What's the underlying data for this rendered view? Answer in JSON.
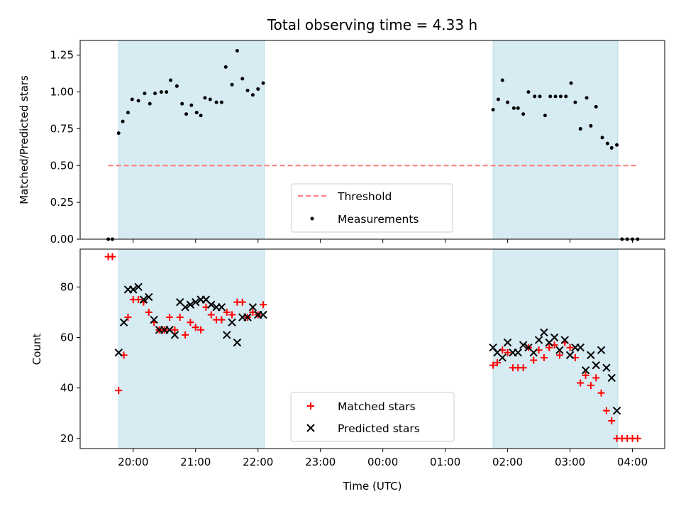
{
  "chart_data": {
    "type": "scatter",
    "title": "Total observing time = 4.33 h",
    "x_unit": "Time (UTC)",
    "x_range": [
      "19:09",
      "04:31"
    ],
    "x_ticks": [
      "20:00",
      "21:00",
      "22:00",
      "23:00",
      "00:00",
      "01:00",
      "02:00",
      "03:00",
      "04:00"
    ],
    "xlabel": "Time (UTC)",
    "shaded_intervals": [
      [
        "19:46",
        "22:06"
      ],
      [
        "01:46",
        "03:46"
      ]
    ],
    "panels": [
      {
        "name": "ratio",
        "ylabel": "Matched/Predicted stars",
        "ylim": [
          0,
          1.35
        ],
        "y_ticks": [
          "0.00",
          "0.25",
          "0.50",
          "0.75",
          "1.00",
          "1.25"
        ],
        "threshold": {
          "label": "Threshold",
          "value": 0.5,
          "x_start": "19:36",
          "x_end": "04:06",
          "color": "#ff7b7b"
        },
        "series": [
          {
            "name": "Measurements",
            "marker": "dot",
            "color": "#000000",
            "points": [
              [
                "19:36",
                0.0
              ],
              [
                "19:40",
                0.0
              ],
              [
                "19:46",
                0.72
              ],
              [
                "19:50",
                0.8
              ],
              [
                "19:55",
                0.86
              ],
              [
                "19:59",
                0.95
              ],
              [
                "20:05",
                0.94
              ],
              [
                "20:11",
                0.99
              ],
              [
                "20:16",
                0.92
              ],
              [
                "20:21",
                0.99
              ],
              [
                "20:27",
                1.0
              ],
              [
                "20:32",
                1.0
              ],
              [
                "20:36",
                1.08
              ],
              [
                "20:42",
                1.04
              ],
              [
                "20:47",
                0.92
              ],
              [
                "20:51",
                0.85
              ],
              [
                "20:56",
                0.91
              ],
              [
                "21:01",
                0.86
              ],
              [
                "21:05",
                0.84
              ],
              [
                "21:09",
                0.96
              ],
              [
                "21:14",
                0.95
              ],
              [
                "21:20",
                0.93
              ],
              [
                "21:25",
                0.93
              ],
              [
                "21:29",
                1.17
              ],
              [
                "21:35",
                1.05
              ],
              [
                "21:40",
                1.28
              ],
              [
                "21:45",
                1.09
              ],
              [
                "21:50",
                1.01
              ],
              [
                "21:55",
                0.98
              ],
              [
                "22:00",
                1.02
              ],
              [
                "22:05",
                1.06
              ],
              [
                "01:46",
                0.88
              ],
              [
                "01:51",
                0.95
              ],
              [
                "01:55",
                1.08
              ],
              [
                "02:00",
                0.93
              ],
              [
                "02:06",
                0.89
              ],
              [
                "02:10",
                0.89
              ],
              [
                "02:15",
                0.85
              ],
              [
                "02:20",
                1.0
              ],
              [
                "02:26",
                0.97
              ],
              [
                "02:31",
                0.97
              ],
              [
                "02:36",
                0.84
              ],
              [
                "02:41",
                0.97
              ],
              [
                "02:46",
                0.97
              ],
              [
                "02:51",
                0.97
              ],
              [
                "02:56",
                0.97
              ],
              [
                "03:01",
                1.06
              ],
              [
                "03:05",
                0.93
              ],
              [
                "03:10",
                0.75
              ],
              [
                "03:16",
                0.96
              ],
              [
                "03:20",
                0.77
              ],
              [
                "03:25",
                0.9
              ],
              [
                "03:31",
                0.69
              ],
              [
                "03:36",
                0.65
              ],
              [
                "03:40",
                0.62
              ],
              [
                "03:45",
                0.64
              ],
              [
                "03:50",
                0.0
              ],
              [
                "03:55",
                0.0
              ],
              [
                "04:00",
                0.0
              ],
              [
                "04:05",
                0.0
              ]
            ]
          }
        ],
        "legend": {
          "placement": "lower center",
          "entries": [
            "Threshold",
            "Measurements"
          ]
        }
      },
      {
        "name": "counts",
        "ylabel": "Count",
        "ylim": [
          16,
          95
        ],
        "y_ticks": [
          "20",
          "40",
          "60",
          "80"
        ],
        "series": [
          {
            "name": "Matched stars",
            "marker": "plus",
            "color": "#ff0000",
            "points": [
              [
                "19:36",
                92
              ],
              [
                "19:40",
                92
              ],
              [
                "19:46",
                39
              ],
              [
                "19:51",
                53
              ],
              [
                "19:55",
                68
              ],
              [
                "20:00",
                75
              ],
              [
                "20:05",
                75
              ],
              [
                "20:10",
                74
              ],
              [
                "20:15",
                70
              ],
              [
                "20:20",
                66
              ],
              [
                "20:25",
                63
              ],
              [
                "20:30",
                63
              ],
              [
                "20:35",
                68
              ],
              [
                "20:40",
                63
              ],
              [
                "20:45",
                68
              ],
              [
                "20:50",
                61
              ],
              [
                "20:55",
                66
              ],
              [
                "21:00",
                64
              ],
              [
                "21:05",
                63
              ],
              [
                "21:10",
                72
              ],
              [
                "21:15",
                69
              ],
              [
                "21:20",
                67
              ],
              [
                "21:25",
                67
              ],
              [
                "21:30",
                70
              ],
              [
                "21:35",
                69
              ],
              [
                "21:40",
                74
              ],
              [
                "21:45",
                74
              ],
              [
                "21:50",
                68
              ],
              [
                "21:55",
                70
              ],
              [
                "22:00",
                69
              ],
              [
                "22:05",
                73
              ],
              [
                "01:46",
                49
              ],
              [
                "01:50",
                50
              ],
              [
                "01:55",
                55
              ],
              [
                "02:00",
                54
              ],
              [
                "02:05",
                48
              ],
              [
                "02:10",
                48
              ],
              [
                "02:15",
                48
              ],
              [
                "02:20",
                56
              ],
              [
                "02:25",
                51
              ],
              [
                "02:30",
                55
              ],
              [
                "02:35",
                52
              ],
              [
                "02:40",
                56
              ],
              [
                "02:45",
                57
              ],
              [
                "02:50",
                53
              ],
              [
                "02:55",
                58
              ],
              [
                "03:00",
                56
              ],
              [
                "03:05",
                52
              ],
              [
                "03:10",
                42
              ],
              [
                "03:15",
                45
              ],
              [
                "03:20",
                41
              ],
              [
                "03:25",
                44
              ],
              [
                "03:30",
                38
              ],
              [
                "03:35",
                31
              ],
              [
                "03:40",
                27
              ],
              [
                "03:45",
                20
              ],
              [
                "03:50",
                20
              ],
              [
                "03:55",
                20
              ],
              [
                "04:00",
                20
              ],
              [
                "04:05",
                20
              ]
            ]
          },
          {
            "name": "Predicted stars",
            "marker": "cross",
            "color": "#000000",
            "points": [
              [
                "19:46",
                54
              ],
              [
                "19:51",
                66
              ],
              [
                "19:55",
                79
              ],
              [
                "20:00",
                79
              ],
              [
                "20:05",
                80
              ],
              [
                "20:10",
                75
              ],
              [
                "20:15",
                76
              ],
              [
                "20:20",
                67
              ],
              [
                "20:25",
                63
              ],
              [
                "20:30",
                63
              ],
              [
                "20:35",
                63
              ],
              [
                "20:40",
                61
              ],
              [
                "20:45",
                74
              ],
              [
                "20:50",
                72
              ],
              [
                "20:55",
                73
              ],
              [
                "21:00",
                74
              ],
              [
                "21:05",
                75
              ],
              [
                "21:10",
                75
              ],
              [
                "21:15",
                73
              ],
              [
                "21:20",
                72
              ],
              [
                "21:25",
                72
              ],
              [
                "21:30",
                61
              ],
              [
                "21:35",
                66
              ],
              [
                "21:40",
                58
              ],
              [
                "21:45",
                68
              ],
              [
                "21:50",
                68
              ],
              [
                "21:55",
                72
              ],
              [
                "22:00",
                69
              ],
              [
                "22:05",
                69
              ],
              [
                "01:46",
                56
              ],
              [
                "01:50",
                54
              ],
              [
                "01:55",
                52
              ],
              [
                "02:00",
                58
              ],
              [
                "02:05",
                54
              ],
              [
                "02:10",
                54
              ],
              [
                "02:15",
                57
              ],
              [
                "02:20",
                56
              ],
              [
                "02:25",
                54
              ],
              [
                "02:30",
                59
              ],
              [
                "02:35",
                62
              ],
              [
                "02:40",
                58
              ],
              [
                "02:45",
                60
              ],
              [
                "02:50",
                55
              ],
              [
                "02:55",
                59
              ],
              [
                "03:00",
                53
              ],
              [
                "03:05",
                56
              ],
              [
                "03:10",
                56
              ],
              [
                "03:15",
                47
              ],
              [
                "03:20",
                53
              ],
              [
                "03:25",
                49
              ],
              [
                "03:30",
                55
              ],
              [
                "03:35",
                48
              ],
              [
                "03:40",
                44
              ],
              [
                "03:45",
                31
              ]
            ]
          }
        ],
        "legend": {
          "placement": "lower center",
          "entries": [
            "Matched stars",
            "Predicted stars"
          ]
        }
      }
    ]
  }
}
